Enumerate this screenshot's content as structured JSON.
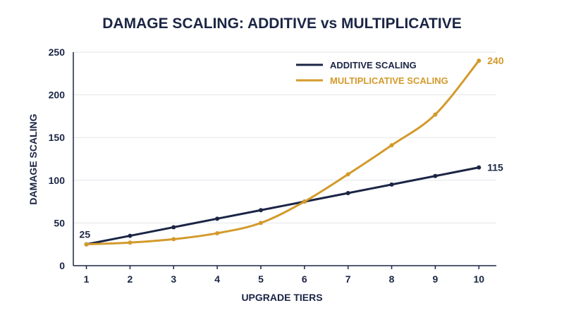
{
  "chart_data": {
    "type": "line",
    "title": "DAMAGE SCALING: ADDITIVE vs MULTIPLICATIVE",
    "xlabel": "UPGRADE TIERS",
    "ylabel": "DAMAGE SCALING",
    "x": [
      1,
      2,
      3,
      4,
      5,
      6,
      7,
      8,
      9,
      10
    ],
    "xlim": [
      0.7,
      10.4
    ],
    "ylim": [
      0,
      250
    ],
    "yticks": [
      0,
      50,
      100,
      150,
      200,
      250
    ],
    "grid": true,
    "legend_position": "top-right",
    "series": [
      {
        "name": "ADDITIVE SCALING",
        "color": "#1b2545",
        "values": [
          25,
          35,
          45,
          55,
          65,
          75,
          85,
          95,
          105,
          115
        ]
      },
      {
        "name": "MULTIPLICATIVE SCALING",
        "color": "#d39a2b",
        "values": [
          25,
          27,
          31,
          38,
          50,
          75,
          107,
          141,
          177,
          240
        ]
      }
    ],
    "annotations": [
      {
        "text": "25",
        "series": 0,
        "index": 0,
        "color": "#1b2545"
      },
      {
        "text": "115",
        "series": 0,
        "index": 9,
        "color": "#1b2545"
      },
      {
        "text": "240",
        "series": 1,
        "index": 9,
        "color": "#d39a2b"
      }
    ]
  }
}
